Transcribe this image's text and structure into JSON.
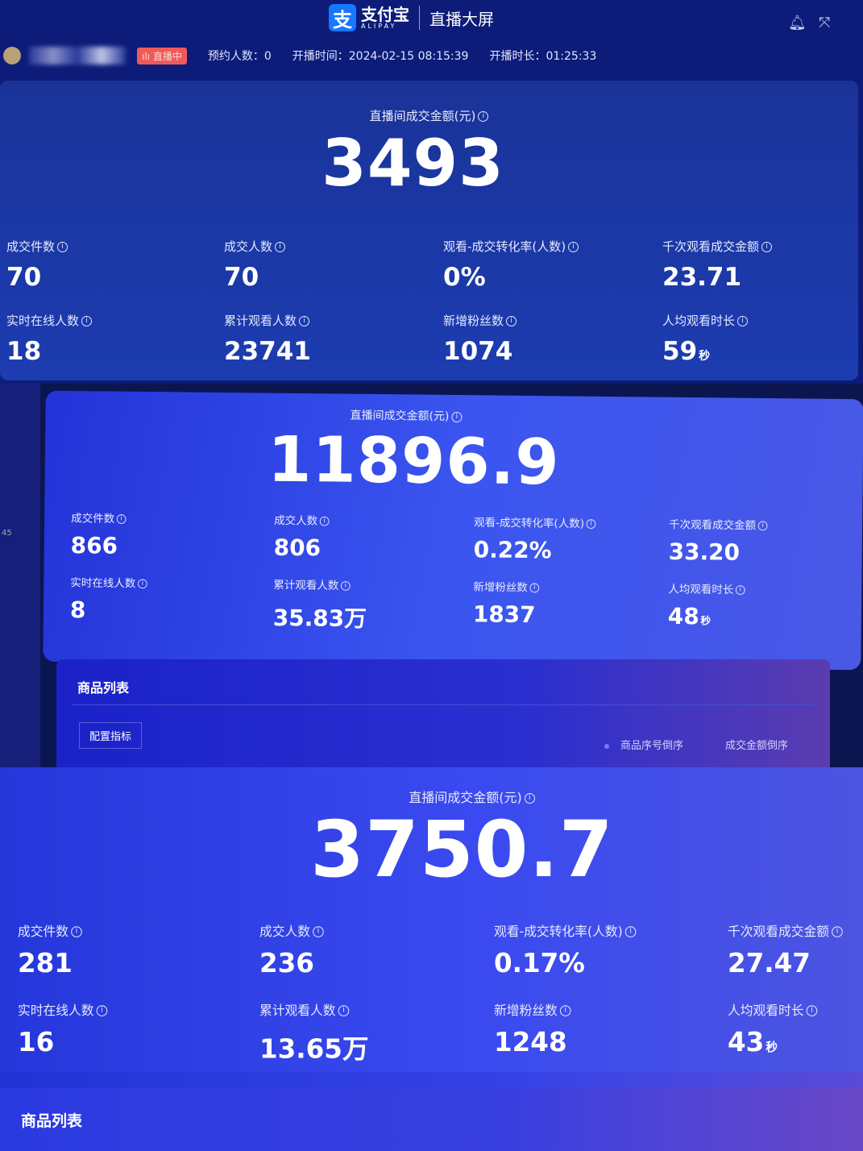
{
  "header": {
    "logo_mark": "支",
    "brand": "支付宝",
    "brand_sub": "ALIPAY",
    "title": "直播大屏",
    "live_badge": "直播中",
    "reservations": "预约人数：0",
    "start_time": "开播时间：2024-02-15 08:15:39",
    "duration": "开播时长：01:25:33",
    "bell_icon": "bell-icon",
    "fullscreen_icon": "fullscreen-icon"
  },
  "panels": [
    {
      "total_label": "直播间成交金额(元)",
      "total_value": "3493",
      "metrics": [
        {
          "label": "成交件数",
          "value": "70",
          "unit": ""
        },
        {
          "label": "成交人数",
          "value": "70",
          "unit": ""
        },
        {
          "label": "观看-成交转化率(人数)",
          "value": "0%",
          "unit": ""
        },
        {
          "label": "千次观看成交金额",
          "value": "23.71",
          "unit": ""
        },
        {
          "label": "实时在线人数",
          "value": "18",
          "unit": ""
        },
        {
          "label": "累计观看人数",
          "value": "23741",
          "unit": ""
        },
        {
          "label": "新增粉丝数",
          "value": "1074",
          "unit": ""
        },
        {
          "label": "人均观看时长",
          "value": "59",
          "unit": "秒"
        }
      ]
    },
    {
      "total_label": "直播间成交金额(元)",
      "total_value": "11896.9",
      "side_text": "45",
      "metrics": [
        {
          "label": "成交件数",
          "value": "866",
          "unit": ""
        },
        {
          "label": "成交人数",
          "value": "806",
          "unit": ""
        },
        {
          "label": "观看-成交转化率(人数)",
          "value": "0.22%",
          "unit": ""
        },
        {
          "label": "千次观看成交金额",
          "value": "33.20",
          "unit": ""
        },
        {
          "label": "实时在线人数",
          "value": "8",
          "unit": ""
        },
        {
          "label": "累计观看人数",
          "value": "35.83万",
          "unit": ""
        },
        {
          "label": "新增粉丝数",
          "value": "1837",
          "unit": ""
        },
        {
          "label": "人均观看时长",
          "value": "48",
          "unit": "秒"
        }
      ],
      "product_list": {
        "title": "商品列表",
        "config_button": "配置指标",
        "sort_options": [
          "商品序号倒序",
          "成交金额倒序"
        ]
      }
    },
    {
      "total_label": "直播间成交金额(元)",
      "total_value": "3750.7",
      "metrics": [
        {
          "label": "成交件数",
          "value": "281",
          "unit": ""
        },
        {
          "label": "成交人数",
          "value": "236",
          "unit": ""
        },
        {
          "label": "观看-成交转化率(人数)",
          "value": "0.17%",
          "unit": ""
        },
        {
          "label": "千次观看成交金额",
          "value": "27.47",
          "unit": ""
        },
        {
          "label": "实时在线人数",
          "value": "16",
          "unit": ""
        },
        {
          "label": "累计观看人数",
          "value": "13.65万",
          "unit": ""
        },
        {
          "label": "新增粉丝数",
          "value": "1248",
          "unit": ""
        },
        {
          "label": "人均观看时长",
          "value": "43",
          "unit": "秒"
        }
      ],
      "product_list": {
        "title": "商品列表"
      }
    }
  ],
  "colors": {
    "background": "#0d1c78",
    "card": "#1c3cb0",
    "live_badge": "#f05a5a",
    "logo": "#1677ff"
  }
}
